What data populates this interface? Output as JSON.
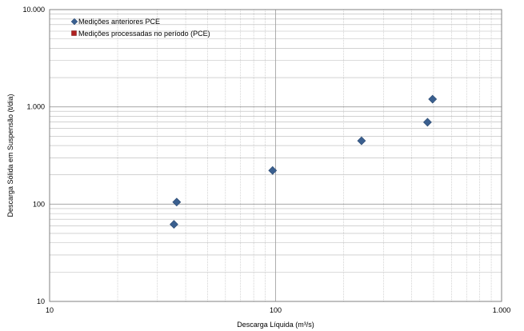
{
  "chart_data": {
    "type": "scatter",
    "title": "",
    "xlabel": "Descarga Líquida (m³/s)",
    "ylabel": "Descarga Sólida em Suspensão (t/dia)",
    "x_scale": "log",
    "y_scale": "log",
    "xlim": [
      10,
      1000
    ],
    "ylim": [
      10,
      10000
    ],
    "x_ticks": [
      {
        "value": 10,
        "label": "10"
      },
      {
        "value": 100,
        "label": "100"
      },
      {
        "value": 1000,
        "label": "1.000"
      }
    ],
    "y_ticks": [
      {
        "value": 10,
        "label": "10"
      },
      {
        "value": 100,
        "label": "100"
      },
      {
        "value": 1000,
        "label": "1.000"
      },
      {
        "value": 10000,
        "label": "10.000"
      }
    ],
    "grid": true,
    "legend_position": "top-left",
    "series": [
      {
        "name": "Medições anteriores PCE",
        "marker": "diamond",
        "color": "#3a5f8f",
        "points": [
          {
            "x": 35.5,
            "y": 62
          },
          {
            "x": 36.5,
            "y": 105
          },
          {
            "x": 97,
            "y": 222
          },
          {
            "x": 240,
            "y": 448
          },
          {
            "x": 470,
            "y": 695
          },
          {
            "x": 495,
            "y": 1200
          }
        ]
      },
      {
        "name": "Medições processadas no período (PCE)",
        "marker": "square",
        "color": "#b02020",
        "points": []
      }
    ]
  }
}
